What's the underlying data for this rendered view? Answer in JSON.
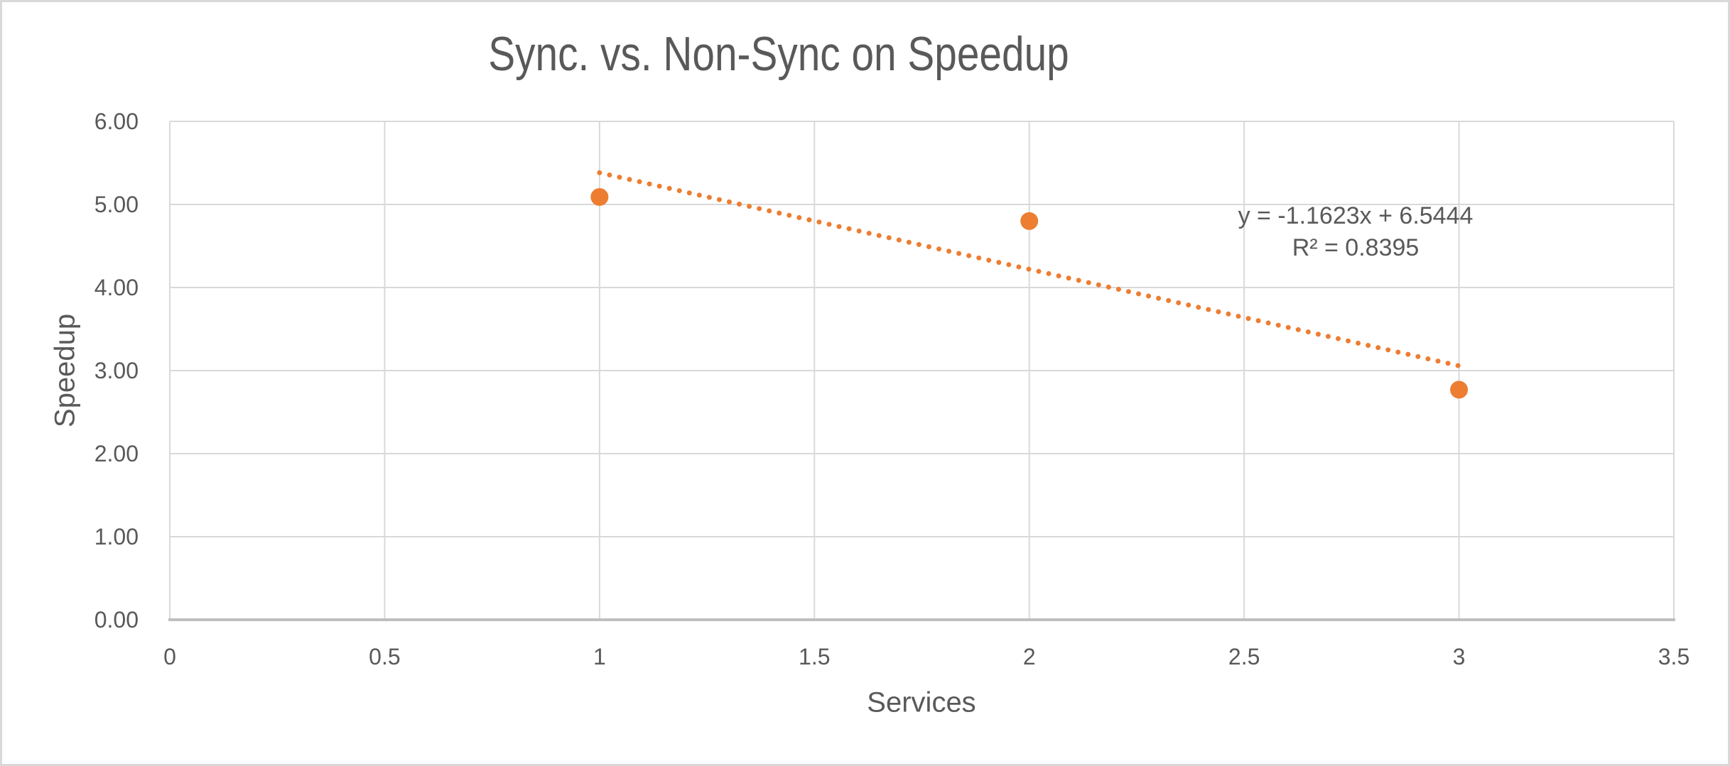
{
  "frame": {
    "background": "#FFFFFF",
    "border_color": "#D9D9D9"
  },
  "chart_data": {
    "type": "scatter",
    "title": "Sync. vs. Non-Sync on Speedup",
    "xlabel": "Services",
    "ylabel": "Speedup",
    "xlim": [
      0,
      3.5
    ],
    "ylim": [
      0,
      6
    ],
    "grid": true,
    "legend": null,
    "x_ticks": [
      0,
      0.5,
      1,
      1.5,
      2,
      2.5,
      3,
      3.5
    ],
    "x_tick_labels": [
      "0",
      "0.5",
      "1",
      "1.5",
      "2",
      "2.5",
      "3",
      "3.5"
    ],
    "y_ticks": [
      0,
      1,
      2,
      3,
      4,
      5,
      6
    ],
    "y_tick_labels": [
      "0.00",
      "1.00",
      "2.00",
      "3.00",
      "4.00",
      "5.00",
      "6.00"
    ],
    "series": [
      {
        "name": "Speedup",
        "marker": "circle",
        "points": [
          {
            "x": 1,
            "y": 5.09
          },
          {
            "x": 2,
            "y": 4.8
          },
          {
            "x": 3,
            "y": 2.77
          }
        ]
      }
    ],
    "trendline": {
      "style": "dotted",
      "slope": -1.1623,
      "intercept": 6.5444,
      "x_range": [
        1,
        3
      ],
      "equation_label": "y = -1.1623x + 6.5444",
      "r2_label": "R² = 0.8395",
      "r_squared": 0.8395
    },
    "colors": {
      "series": "#ED7D31",
      "gridline": "#D9D9D9",
      "axis_line": "#BFBFBF",
      "text": "#595959"
    }
  }
}
